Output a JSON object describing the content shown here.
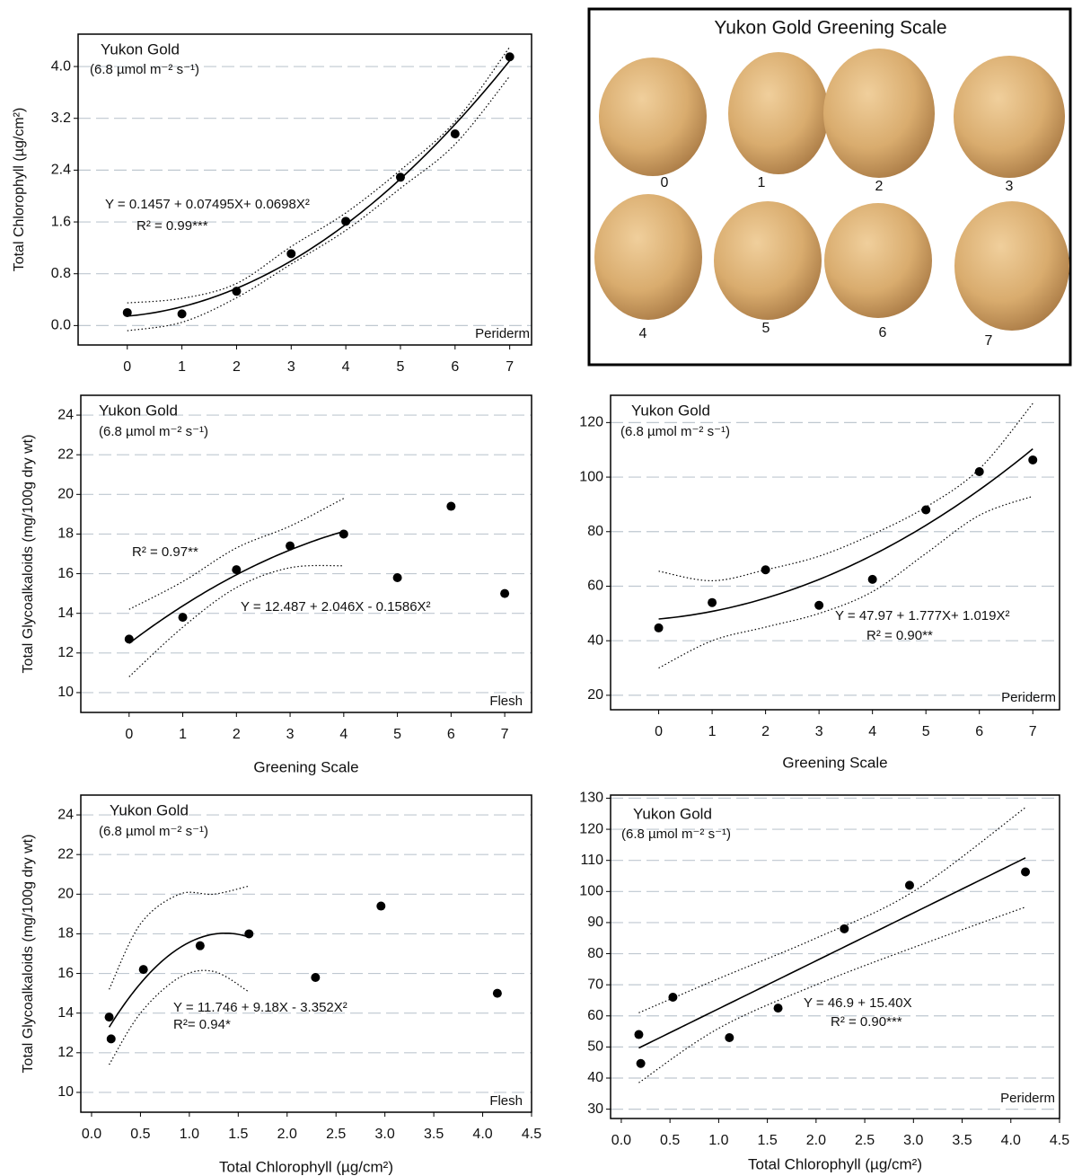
{
  "chart_data": [
    {
      "type": "scatter",
      "title": "Yukon Gold",
      "subtitle": "(6.8 µmol m⁻² s⁻¹)",
      "tissue": "Periderm",
      "y_label": "Total Chlorophyll (µg/cm²)",
      "x": [
        0,
        1,
        2,
        3,
        4,
        5,
        6,
        7
      ],
      "values": [
        0.2,
        0.18,
        0.53,
        1.11,
        1.61,
        2.29,
        2.96,
        4.15
      ],
      "color": "#000000",
      "xlim": [
        -0.9,
        7.4
      ],
      "ylim": [
        -0.3,
        4.5
      ],
      "xticks": [
        0,
        1,
        2,
        3,
        4,
        5,
        6,
        7
      ],
      "yticks": [
        {
          "value": 0,
          "label": "0.0"
        },
        0.8,
        1.6,
        2.4,
        3.2,
        {
          "value": 4,
          "label": "4.0"
        }
      ],
      "grid": true,
      "fit": {
        "equation": "Y = 0.1457 + 0.07495X+ 0.0698X²",
        "r2": "R² = 0.99***",
        "coefficients": [
          0.1457,
          0.07495,
          0.0698
        ],
        "x": [
          0,
          1,
          2,
          3,
          4,
          5,
          6,
          7
        ],
        "upper": [
          0.35,
          0.42,
          0.65,
          1.22,
          1.74,
          2.4,
          3.15,
          4.3
        ],
        "lower": [
          -0.08,
          0.05,
          0.43,
          0.95,
          1.47,
          2.12,
          2.8,
          3.85
        ]
      }
    },
    {
      "type": "scatter",
      "title": "Yukon Gold",
      "subtitle": "(6.8 µmol m⁻² s⁻¹)",
      "tissue": "Flesh",
      "y_label": "Total Glycoalkaloids (mg/100g dry wt)",
      "x_label": "Greening Scale",
      "x": [
        0,
        1,
        2,
        3,
        4,
        5,
        6,
        7
      ],
      "values": [
        12.7,
        13.8,
        16.2,
        17.4,
        18.0,
        15.8,
        19.4,
        15.0
      ],
      "color": "#000000",
      "xlim": [
        -0.9,
        7.5
      ],
      "ylim": [
        9,
        25
      ],
      "xticks": [
        0,
        1,
        2,
        3,
        4,
        5,
        6,
        7
      ],
      "yticks": [
        10,
        12,
        14,
        16,
        18,
        20,
        22,
        24
      ],
      "grid": true,
      "fit": {
        "equation": "Y = 12.487 + 2.046X - 0.1586X²",
        "r2": "R² = 0.97**",
        "coefficients": [
          12.487,
          2.046,
          -0.1586
        ],
        "x": [
          0,
          1,
          2,
          3,
          4
        ],
        "upper": [
          14.2,
          15.6,
          17.3,
          18.4,
          19.8
        ],
        "lower": [
          10.8,
          13.3,
          15.3,
          16.3,
          16.4
        ]
      }
    },
    {
      "type": "scatter",
      "title": "Yukon Gold",
      "subtitle": "(6.8 µmol m⁻² s⁻¹)",
      "tissue": "Periderm",
      "x_label": "Greening Scale",
      "x": [
        0,
        1,
        2,
        3,
        4,
        5,
        6,
        7
      ],
      "values": [
        44.7,
        54,
        66,
        53,
        62.5,
        88,
        102,
        106.3
      ],
      "color": "#000000",
      "xlim": [
        -0.9,
        7.5
      ],
      "ylim": [
        14.7,
        130
      ],
      "xticks": [
        0,
        1,
        2,
        3,
        4,
        5,
        6,
        7
      ],
      "yticks": [
        20,
        40,
        60,
        80,
        100,
        120
      ],
      "grid": true,
      "fit": {
        "equation": "Y = 47.97 + 1.777X+ 1.019X²",
        "r2": "R² = 0.90**",
        "coefficients": [
          47.97,
          1.777,
          1.019
        ],
        "x": [
          0,
          1,
          2,
          3,
          4,
          5,
          6,
          7
        ],
        "upper": [
          65.5,
          62,
          66,
          71,
          79,
          89,
          103,
          127
        ],
        "lower": [
          30,
          40,
          45,
          50,
          58,
          72,
          86,
          93
        ]
      }
    },
    {
      "type": "scatter",
      "title": "Yukon Gold",
      "subtitle": "(6.8 µmol m⁻² s⁻¹)",
      "tissue": "Flesh",
      "y_label": "Total Glycoalkaloids (mg/100g dry wt)",
      "x_label": "Total Chlorophyll (µg/cm²)",
      "x": [
        0.2,
        0.18,
        0.53,
        1.11,
        1.61,
        2.29,
        2.96,
        4.15
      ],
      "values": [
        12.7,
        13.8,
        16.2,
        17.4,
        18.0,
        15.8,
        19.4,
        15.0
      ],
      "color": "#000000",
      "xlim": [
        -0.11,
        4.5
      ],
      "ylim": [
        9,
        25
      ],
      "xticks": [
        {
          "value": 0,
          "label": "0.0"
        },
        0.5,
        {
          "value": 1,
          "label": "1.0"
        },
        1.5,
        {
          "value": 2,
          "label": "2.0"
        },
        2.5,
        {
          "value": 3,
          "label": "3.0"
        },
        3.5,
        {
          "value": 4,
          "label": "4.0"
        },
        4.5
      ],
      "yticks": [
        10,
        12,
        14,
        16,
        18,
        20,
        22,
        24
      ],
      "grid": true,
      "fit": {
        "equation": "Y = 11.746 + 9.18X - 3.352X²",
        "r2": "R²= 0.94*",
        "coefficients": [
          11.746,
          9.18,
          -3.352
        ],
        "x": [
          0.18,
          0.5,
          0.9,
          1.25,
          1.6
        ],
        "upper": [
          15.2,
          18.5,
          20,
          20,
          20.4
        ],
        "lower": [
          11.4,
          14,
          15.8,
          16.1,
          15.1
        ]
      }
    },
    {
      "type": "scatter",
      "title": "Yukon Gold",
      "subtitle": "(6.8 µmol m⁻² s⁻¹)",
      "tissue": "Periderm",
      "x_label": "Total Chlorophyll (µg/cm²)",
      "x": [
        0.2,
        0.18,
        0.53,
        1.11,
        1.61,
        2.29,
        2.96,
        4.15
      ],
      "values": [
        44.7,
        54,
        66,
        53,
        62.5,
        88,
        102,
        106.3
      ],
      "color": "#000000",
      "xlim": [
        -0.11,
        4.5
      ],
      "ylim": [
        27,
        131
      ],
      "xticks": [
        {
          "value": 0,
          "label": "0.0"
        },
        0.5,
        {
          "value": 1,
          "label": "1.0"
        },
        1.5,
        {
          "value": 2,
          "label": "2.0"
        },
        2.5,
        {
          "value": 3,
          "label": "3.0"
        },
        3.5,
        {
          "value": 4,
          "label": "4.0"
        },
        4.5
      ],
      "yticks": [
        30,
        40,
        50,
        60,
        70,
        80,
        90,
        100,
        110,
        120,
        130
      ],
      "grid": true,
      "fit": {
        "equation": "Y = 46.9 + 15.40X",
        "r2": "R² = 0.90***",
        "coefficients": [
          46.9,
          15.4
        ],
        "x": [
          0.18,
          1,
          2,
          3,
          4.15
        ],
        "upper": [
          61,
          72,
          85,
          100,
          127
        ],
        "lower": [
          38.5,
          56,
          70,
          82,
          95
        ]
      }
    }
  ],
  "image_panel": {
    "title": "Yukon Gold Greening Scale",
    "labels": [
      "0",
      "1",
      "2",
      "3",
      "4",
      "5",
      "6",
      "7"
    ]
  }
}
